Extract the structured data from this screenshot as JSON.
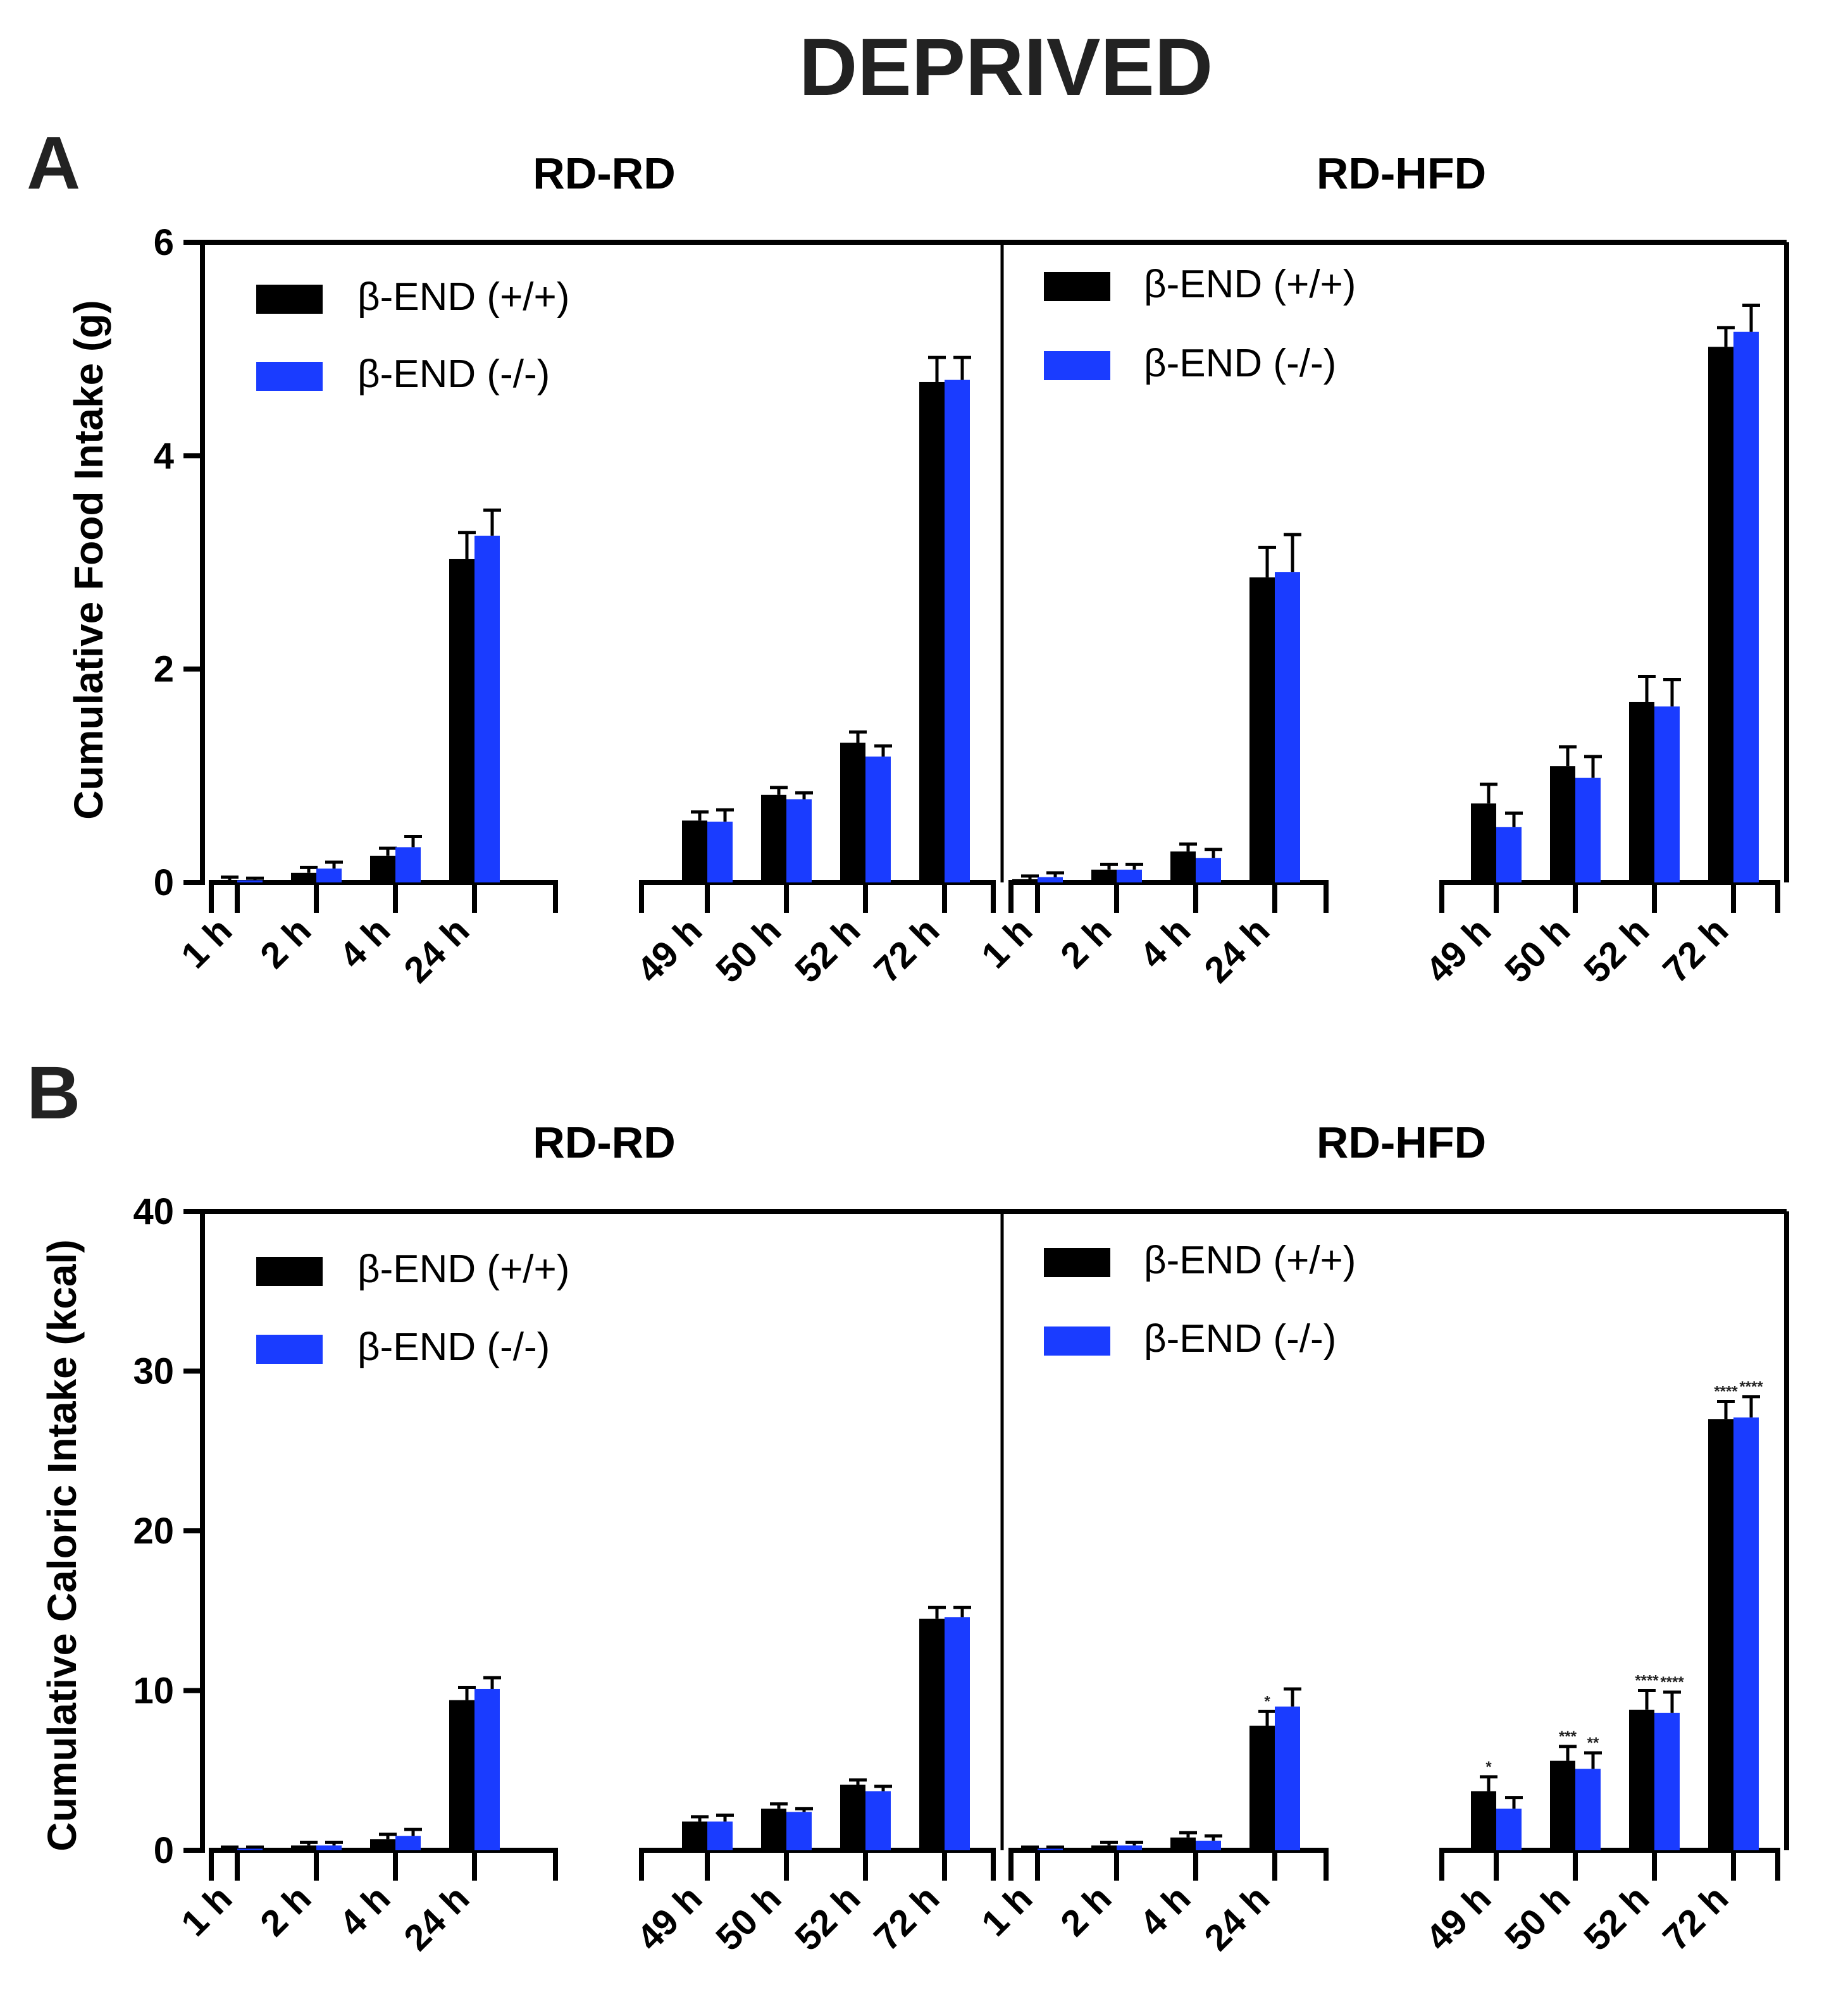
{
  "figure": {
    "title": "DEPRIVED",
    "colors": {
      "wt": "#000000",
      "ko": "#1a3cff"
    }
  },
  "chart_data": [
    {
      "panel": "A",
      "type": "bar",
      "ylabel": "Cumulative Food Intake (g)",
      "ylim": [
        0,
        6
      ],
      "yticks": [
        "0",
        "2",
        "4",
        "6"
      ],
      "legend": [
        "β-END (+/+)",
        "β-END (-/-)"
      ],
      "groups": [
        {
          "title": "RD-RD",
          "blocks": [
            {
              "categories": [
                "1 h",
                "2 h",
                "4 h",
                "24 h"
              ],
              "series": [
                {
                  "name": "β-END (+/+)",
                  "values": [
                    0.02,
                    0.09,
                    0.25,
                    3.03
                  ],
                  "errors": [
                    0.03,
                    0.05,
                    0.07,
                    0.25
                  ]
                },
                {
                  "name": "β-END (-/-)",
                  "values": [
                    0.02,
                    0.13,
                    0.33,
                    3.25
                  ],
                  "errors": [
                    0.02,
                    0.06,
                    0.1,
                    0.24
                  ]
                }
              ]
            },
            {
              "categories": [
                "49 h",
                "50 h",
                "52 h",
                "72 h"
              ],
              "series": [
                {
                  "name": "β-END (+/+)",
                  "values": [
                    0.58,
                    0.82,
                    1.31,
                    4.69
                  ],
                  "errors": [
                    0.08,
                    0.07,
                    0.1,
                    0.23
                  ]
                },
                {
                  "name": "β-END (-/-)",
                  "values": [
                    0.57,
                    0.78,
                    1.18,
                    4.71
                  ],
                  "errors": [
                    0.11,
                    0.06,
                    0.1,
                    0.21
                  ]
                }
              ]
            }
          ]
        },
        {
          "title": "RD-HFD",
          "blocks": [
            {
              "categories": [
                "1 h",
                "2 h",
                "4 h",
                "24 h"
              ],
              "series": [
                {
                  "name": "β-END (+/+)",
                  "values": [
                    0.03,
                    0.12,
                    0.29,
                    2.86
                  ],
                  "errors": [
                    0.03,
                    0.05,
                    0.07,
                    0.28
                  ]
                },
                {
                  "name": "β-END (-/-)",
                  "values": [
                    0.05,
                    0.12,
                    0.23,
                    2.91
                  ],
                  "errors": [
                    0.04,
                    0.05,
                    0.08,
                    0.35
                  ]
                }
              ]
            },
            {
              "categories": [
                "49 h",
                "50 h",
                "52 h",
                "72 h"
              ],
              "series": [
                {
                  "name": "β-END (+/+)",
                  "values": [
                    0.74,
                    1.09,
                    1.69,
                    5.02
                  ],
                  "errors": [
                    0.18,
                    0.18,
                    0.24,
                    0.18
                  ]
                },
                {
                  "name": "β-END (-/-)",
                  "values": [
                    0.52,
                    0.98,
                    1.65,
                    5.16
                  ],
                  "errors": [
                    0.13,
                    0.2,
                    0.25,
                    0.25
                  ]
                }
              ]
            }
          ]
        }
      ]
    },
    {
      "panel": "B",
      "type": "bar",
      "ylabel": "Cumulative Caloric Intake (kcal)",
      "ylim": [
        0,
        40
      ],
      "yticks": [
        "0",
        "10",
        "20",
        "30",
        "40"
      ],
      "legend": [
        "β-END (+/+)",
        "β-END (-/-)"
      ],
      "groups": [
        {
          "title": "RD-RD",
          "blocks": [
            {
              "categories": [
                "1 h",
                "2 h",
                "4 h",
                "24 h"
              ],
              "series": [
                {
                  "name": "β-END (+/+)",
                  "values": [
                    0.1,
                    0.3,
                    0.7,
                    9.4
                  ],
                  "errors": [
                    0.1,
                    0.2,
                    0.3,
                    0.8
                  ]
                },
                {
                  "name": "β-END (-/-)",
                  "values": [
                    0.1,
                    0.3,
                    0.9,
                    10.1
                  ],
                  "errors": [
                    0.1,
                    0.2,
                    0.4,
                    0.7
                  ]
                }
              ]
            },
            {
              "categories": [
                "49 h",
                "50 h",
                "52 h",
                "72 h"
              ],
              "series": [
                {
                  "name": "β-END (+/+)",
                  "values": [
                    1.8,
                    2.6,
                    4.1,
                    14.5
                  ],
                  "errors": [
                    0.3,
                    0.3,
                    0.3,
                    0.7
                  ]
                },
                {
                  "name": "β-END (-/-)",
                  "values": [
                    1.8,
                    2.4,
                    3.7,
                    14.6
                  ],
                  "errors": [
                    0.4,
                    0.2,
                    0.3,
                    0.6
                  ]
                }
              ]
            }
          ]
        },
        {
          "title": "RD-HFD",
          "blocks": [
            {
              "categories": [
                "1 h",
                "2 h",
                "4 h",
                "24 h"
              ],
              "series": [
                {
                  "name": "β-END (+/+)",
                  "values": [
                    0.1,
                    0.3,
                    0.8,
                    7.8
                  ],
                  "errors": [
                    0.1,
                    0.2,
                    0.3,
                    0.9
                  ]
                },
                {
                  "name": "β-END (-/-)",
                  "values": [
                    0.1,
                    0.3,
                    0.6,
                    9.0
                  ],
                  "errors": [
                    0.1,
                    0.2,
                    0.3,
                    1.1
                  ]
                }
              ]
            },
            {
              "categories": [
                "49 h",
                "50 h",
                "52 h",
                "72 h"
              ],
              "series": [
                {
                  "name": "β-END (+/+)",
                  "values": [
                    3.7,
                    5.6,
                    8.8,
                    27.0
                  ],
                  "errors": [
                    0.9,
                    0.9,
                    1.2,
                    1.1
                  ]
                },
                {
                  "name": "β-END (-/-)",
                  "values": [
                    2.6,
                    5.1,
                    8.6,
                    27.1
                  ],
                  "errors": [
                    0.7,
                    1.0,
                    1.3,
                    1.3
                  ]
                }
              ]
            }
          ]
        }
      ],
      "annotations": [
        {
          "group": "RD-HFD",
          "category": "24 h",
          "series": "β-END (+/+)",
          "text": "*"
        },
        {
          "group": "RD-HFD",
          "category": "49 h",
          "series": "β-END (+/+)",
          "text": "*"
        },
        {
          "group": "RD-HFD",
          "category": "50 h",
          "series": "β-END (+/+)",
          "text": "***"
        },
        {
          "group": "RD-HFD",
          "category": "50 h",
          "series": "β-END (-/-)",
          "text": "**"
        },
        {
          "group": "RD-HFD",
          "category": "52 h",
          "series": "β-END (+/+)",
          "text": "****"
        },
        {
          "group": "RD-HFD",
          "category": "52 h",
          "series": "β-END (-/-)",
          "text": "****"
        },
        {
          "group": "RD-HFD",
          "category": "72 h",
          "series": "β-END (+/+)",
          "text": "****"
        },
        {
          "group": "RD-HFD",
          "category": "72 h",
          "series": "β-END (-/-)",
          "text": "****"
        }
      ]
    }
  ]
}
